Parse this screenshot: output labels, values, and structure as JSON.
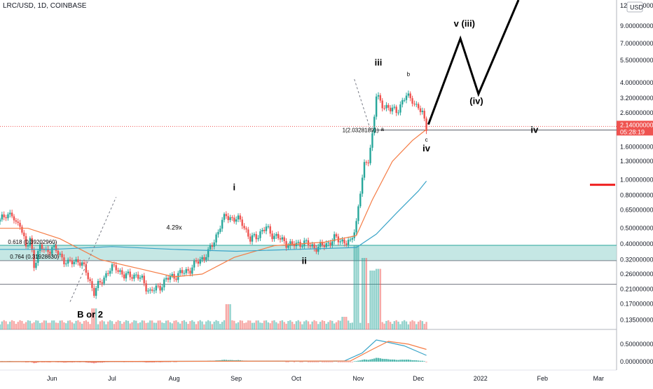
{
  "header": {
    "symbol": "LRC/USD, 1D, COINBASE"
  },
  "axis": {
    "currency": "USD",
    "price_ticks": [
      "12.00000000",
      "9.00000000",
      "7.00000000",
      "5.50000000",
      "4.00000000",
      "3.20000000",
      "2.60000000",
      "1.60000000",
      "1.30000000",
      "1.00000000",
      "0.80000000",
      "0.65000000",
      "0.50000000",
      "0.40000000",
      "0.32000000",
      "0.26000000",
      "0.21000000",
      "0.17000000",
      "0.13500000"
    ],
    "price_tick_values": [
      12,
      9,
      7,
      5.5,
      4,
      3.2,
      2.6,
      1.6,
      1.3,
      1.0,
      0.8,
      0.65,
      0.5,
      0.4,
      0.32,
      0.26,
      0.21,
      0.17,
      0.135
    ],
    "price_scale": "log",
    "current_price": "2.14000000",
    "countdown": "05:28:19",
    "osc_ticks": [
      "0.50000000",
      "0.00000000"
    ],
    "osc_tick_values": [
      0.5,
      0.0
    ],
    "time_labels": [
      "Jun",
      "Jul",
      "Aug",
      "Sep",
      "Oct",
      "Nov",
      "Dec",
      "2022",
      "Feb",
      "Mar"
    ]
  },
  "annotations": {
    "fib1": "1(2.03281891)",
    "fib618": "0.618 (0.39202960)",
    "fib764": "0.764 (0.31928630)",
    "ratio": "4.29x",
    "wave_i": "i",
    "wave_ii": "ii",
    "wave_iii": "iii",
    "wave_iv": "iv",
    "wave_iv_right": "iv",
    "wave_a": "a",
    "wave_b": "b",
    "wave_c": "c",
    "wave_v_iii": "v (iii)",
    "wave_iv_paren": "(iv)",
    "b_or_2": "B or 2"
  },
  "colors": {
    "up": "#26a69a",
    "down": "#ef5350",
    "ma_fast": "#f57c45",
    "ma_slow": "#3aa4c8",
    "zone_fill": "#b2dfdb",
    "price_line": "#ef5350",
    "price_label_bg": "#ef5350"
  },
  "chart_data": {
    "type": "candlestick",
    "x_range": [
      "2021-05-06",
      "2022-03-10"
    ],
    "y_scale": "log",
    "y_range": [
      0.118,
      13
    ],
    "date_anchors": [
      [
        "Jun",
        "2021-06-01"
      ],
      [
        "Jul",
        "2021-07-01"
      ],
      [
        "Aug",
        "2021-08-01"
      ],
      [
        "Sep",
        "2021-09-01"
      ],
      [
        "Oct",
        "2021-10-01"
      ],
      [
        "Nov",
        "2021-11-01"
      ],
      [
        "Dec",
        "2021-12-01"
      ],
      [
        "2022",
        "2022-01-01"
      ],
      [
        "Feb",
        "2022-02-01"
      ],
      [
        "Mar",
        "2022-03-01"
      ]
    ],
    "price_path": [
      [
        "2021-05-06",
        0.55
      ],
      [
        "2021-05-09",
        0.62
      ],
      [
        "2021-05-12",
        0.6
      ],
      [
        "2021-05-14",
        0.52
      ],
      [
        "2021-05-16",
        0.55
      ],
      [
        "2021-05-19",
        0.38
      ],
      [
        "2021-05-21",
        0.42
      ],
      [
        "2021-05-23",
        0.3
      ],
      [
        "2021-05-26",
        0.38
      ],
      [
        "2021-05-29",
        0.36
      ],
      [
        "2021-06-01",
        0.38
      ],
      [
        "2021-06-05",
        0.34
      ],
      [
        "2021-06-09",
        0.3
      ],
      [
        "2021-06-14",
        0.32
      ],
      [
        "2021-06-18",
        0.27
      ],
      [
        "2021-06-22",
        0.2
      ],
      [
        "2021-06-26",
        0.24
      ],
      [
        "2021-06-29",
        0.27
      ],
      [
        "2021-07-03",
        0.29
      ],
      [
        "2021-07-07",
        0.25
      ],
      [
        "2021-07-11",
        0.26
      ],
      [
        "2021-07-16",
        0.24
      ],
      [
        "2021-07-20",
        0.2
      ],
      [
        "2021-07-25",
        0.22
      ],
      [
        "2021-07-30",
        0.25
      ],
      [
        "2021-08-04",
        0.26
      ],
      [
        "2021-08-09",
        0.28
      ],
      [
        "2021-08-14",
        0.32
      ],
      [
        "2021-08-18",
        0.35
      ],
      [
        "2021-08-21",
        0.42
      ],
      [
        "2021-08-24",
        0.52
      ],
      [
        "2021-08-27",
        0.6
      ],
      [
        "2021-08-31",
        0.57
      ],
      [
        "2021-09-04",
        0.55
      ],
      [
        "2021-09-08",
        0.42
      ],
      [
        "2021-09-12",
        0.46
      ],
      [
        "2021-09-16",
        0.5
      ],
      [
        "2021-09-20",
        0.45
      ],
      [
        "2021-09-24",
        0.42
      ],
      [
        "2021-09-29",
        0.39
      ],
      [
        "2021-10-04",
        0.41
      ],
      [
        "2021-10-08",
        0.39
      ],
      [
        "2021-10-12",
        0.38
      ],
      [
        "2021-10-16",
        0.4
      ],
      [
        "2021-10-20",
        0.43
      ],
      [
        "2021-10-24",
        0.42
      ],
      [
        "2021-10-28",
        0.4
      ],
      [
        "2021-10-31",
        0.55
      ],
      [
        "2021-11-02",
        0.85
      ],
      [
        "2021-11-04",
        1.2
      ],
      [
        "2021-11-06",
        1.35
      ],
      [
        "2021-11-08",
        1.9
      ],
      [
        "2021-11-10",
        3.3
      ],
      [
        "2021-11-12",
        3.0
      ],
      [
        "2021-11-14",
        2.9
      ],
      [
        "2021-11-17",
        2.7
      ],
      [
        "2021-11-20",
        2.7
      ],
      [
        "2021-11-23",
        3.0
      ],
      [
        "2021-11-25",
        3.3
      ],
      [
        "2021-11-28",
        3.2
      ],
      [
        "2021-11-30",
        2.8
      ],
      [
        "2021-12-03",
        2.6
      ],
      [
        "2021-12-05",
        2.14
      ]
    ],
    "volume_peaks": [
      [
        "2021-10-31",
        1.0
      ],
      [
        "2021-11-04",
        0.85
      ],
      [
        "2021-11-08",
        0.7
      ],
      [
        "2021-11-11",
        0.72
      ],
      [
        "2021-10-25",
        0.15
      ],
      [
        "2021-08-28",
        0.3
      ],
      [
        "2021-06-22",
        0.25
      ]
    ],
    "ma_fast_path": [
      [
        "2021-05-06",
        0.5
      ],
      [
        "2021-05-20",
        0.5
      ],
      [
        "2021-06-05",
        0.43
      ],
      [
        "2021-06-25",
        0.32
      ],
      [
        "2021-07-15",
        0.28
      ],
      [
        "2021-08-01",
        0.25
      ],
      [
        "2021-08-15",
        0.26
      ],
      [
        "2021-08-31",
        0.33
      ],
      [
        "2021-09-20",
        0.39
      ],
      [
        "2021-10-15",
        0.41
      ],
      [
        "2021-10-31",
        0.45
      ],
      [
        "2021-11-08",
        0.75
      ],
      [
        "2021-11-18",
        1.3
      ],
      [
        "2021-11-28",
        1.75
      ],
      [
        "2021-12-05",
        2.05
      ]
    ],
    "ma_slow_path": [
      [
        "2021-05-06",
        0.37
      ],
      [
        "2021-06-01",
        0.37
      ],
      [
        "2021-07-01",
        0.385
      ],
      [
        "2021-08-01",
        0.37
      ],
      [
        "2021-09-01",
        0.36
      ],
      [
        "2021-10-01",
        0.37
      ],
      [
        "2021-10-31",
        0.38
      ],
      [
        "2021-11-10",
        0.46
      ],
      [
        "2021-11-20",
        0.62
      ],
      [
        "2021-12-01",
        0.85
      ],
      [
        "2021-12-05",
        0.98
      ]
    ],
    "fib_zone": [
      0.315,
      0.392
    ],
    "fib_level_1": 2.0328,
    "support_line": 0.225,
    "projection_path": [
      [
        "2021-12-06",
        2.2
      ],
      [
        "2021-12-22",
        7.5
      ],
      [
        "2021-12-31",
        3.4
      ],
      [
        "2022-01-20",
        13
      ]
    ]
  }
}
